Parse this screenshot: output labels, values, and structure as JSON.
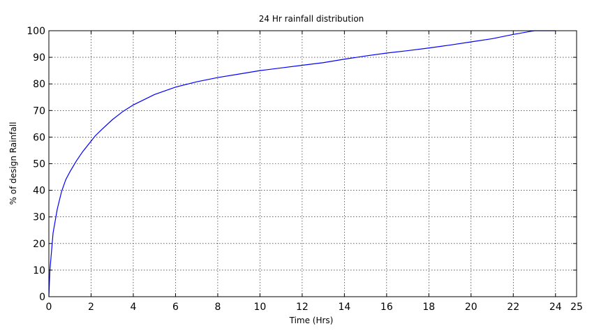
{
  "chart_data": {
    "type": "line",
    "title": "24 Hr rainfall distribution",
    "xlabel": "Time (Hrs)",
    "ylabel": "% of design Rainfall",
    "xlim": [
      0,
      25
    ],
    "ylim": [
      0,
      100
    ],
    "xticks": [
      0,
      2,
      4,
      6,
      8,
      10,
      12,
      14,
      16,
      18,
      20,
      22,
      24,
      25
    ],
    "yticks": [
      0,
      10,
      20,
      30,
      40,
      50,
      60,
      70,
      80,
      90,
      100
    ],
    "grid": true,
    "series": [
      {
        "color": "#0000ff",
        "x": [
          0,
          0.05,
          0.2,
          0.4,
          0.6,
          0.8,
          1.0,
          1.3,
          1.6,
          2.0,
          2.2,
          2.5,
          3.0,
          3.5,
          4.0,
          5.0,
          6.0,
          7.0,
          8.0,
          9.0,
          10.0,
          11.0,
          12.0,
          13.0,
          14.0,
          15.0,
          16.0,
          17.0,
          18.0,
          19.0,
          20.0,
          21.0,
          22.0,
          23.0,
          24.0
        ],
        "y": [
          0,
          10,
          24,
          33,
          39.5,
          44,
          47,
          51,
          54.5,
          58.5,
          60.5,
          62.8,
          66.5,
          69.6,
          72.1,
          76,
          78.8,
          80.8,
          82.4,
          83.7,
          85,
          86,
          87,
          88,
          89.3,
          90.5,
          91.6,
          92.5,
          93.5,
          94.6,
          95.8,
          97,
          98.6,
          100,
          100
        ]
      }
    ]
  }
}
